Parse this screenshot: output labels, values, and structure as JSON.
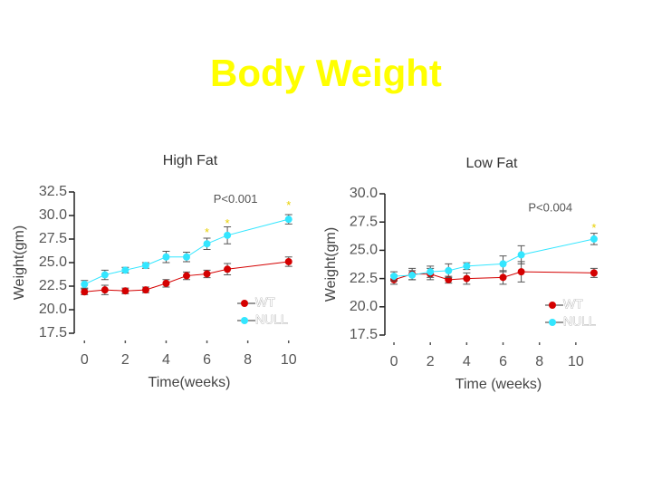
{
  "title": "Body Weight",
  "chart_data": [
    {
      "type": "line",
      "title": "High Fat",
      "xlabel": "Time(weeks)",
      "ylabel": "Weight(gm)",
      "x": [
        0,
        1,
        2,
        3,
        4,
        5,
        6,
        7,
        10
      ],
      "series": [
        {
          "name": "WT",
          "color": "#d40000",
          "values": [
            21.9,
            22.1,
            22.0,
            22.1,
            22.8,
            23.6,
            23.8,
            24.3,
            25.1
          ],
          "errors": [
            0.3,
            0.5,
            0.3,
            0.3,
            0.4,
            0.4,
            0.4,
            0.6,
            0.5
          ]
        },
        {
          "name": "NULL",
          "color": "#33e6ff",
          "values": [
            22.7,
            23.7,
            24.2,
            24.7,
            25.6,
            25.6,
            27.0,
            27.9,
            29.6
          ],
          "errors": [
            0.4,
            0.5,
            0.3,
            0.3,
            0.6,
            0.5,
            0.6,
            0.9,
            0.5
          ]
        }
      ],
      "xlim": [
        -0.5,
        10.5
      ],
      "ylim": [
        17.5,
        32.5
      ],
      "xticks": [
        0,
        2,
        4,
        6,
        8,
        10
      ],
      "yticks": [
        17.5,
        {
          "value": 20,
          "label": "20.0"
        },
        22.5,
        {
          "value": 25,
          "label": "25.0"
        },
        27.5,
        {
          "value": 30,
          "label": "30.0"
        },
        32.5
      ],
      "annotations": [
        {
          "text": "P<0.001",
          "x": 7.4,
          "y": 31.7
        },
        {
          "text": "*",
          "x": 6,
          "y": 28.1
        },
        {
          "text": "*",
          "x": 7,
          "y": 29.1
        },
        {
          "text": "*",
          "x": 10,
          "y": 31.0
        }
      ],
      "legend": "lower right"
    },
    {
      "type": "line",
      "title": "Low Fat",
      "xlabel": "Time (weeks)",
      "ylabel": "Weight(gm)",
      "x": [
        0,
        1,
        2,
        3,
        4,
        6,
        7,
        11
      ],
      "series": [
        {
          "name": "WT",
          "color": "#d40000",
          "values": [
            22.4,
            22.9,
            22.9,
            22.4,
            22.5,
            22.6,
            23.1,
            23.0
          ],
          "errors": [
            0.4,
            0.5,
            0.5,
            0.3,
            0.5,
            0.6,
            0.9,
            0.4
          ]
        },
        {
          "name": "NULL",
          "color": "#33e6ff",
          "values": [
            22.7,
            22.8,
            23.1,
            23.2,
            23.6,
            23.8,
            24.6,
            26.0
          ],
          "errors": [
            0.4,
            0.4,
            0.5,
            0.6,
            0.3,
            0.7,
            0.8,
            0.5
          ]
        }
      ],
      "xlim": [
        -0.5,
        11.7
      ],
      "ylim": [
        17.5,
        30
      ],
      "xticks": [
        0,
        2,
        4,
        6,
        8,
        10
      ],
      "yticks": [
        17.5,
        {
          "value": 20,
          "label": "20.0"
        },
        22.5,
        {
          "value": 25,
          "label": "25.0"
        },
        27.5,
        {
          "value": 30,
          "label": "30.0"
        }
      ],
      "annotations": [
        {
          "text": "P<0.004",
          "x": 8.6,
          "y": 28.7
        },
        {
          "text": "*",
          "x": 11,
          "y": 26.9
        }
      ],
      "legend": "lower right"
    }
  ]
}
